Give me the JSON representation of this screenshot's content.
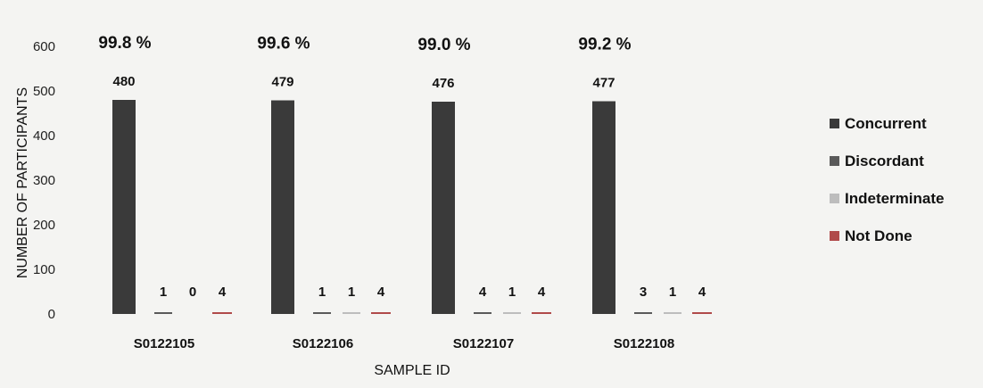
{
  "chart_data": {
    "type": "bar",
    "title": "",
    "xlabel": "SAMPLE ID",
    "ylabel": "NUMBER OF PARTICIPANTS",
    "ylim": [
      0,
      600
    ],
    "yticks": [
      "0",
      "100",
      "200",
      "300",
      "400",
      "500",
      "600"
    ],
    "categories": [
      "S0122105",
      "S0122106",
      "S0122107",
      "S0122108"
    ],
    "series": [
      {
        "name": "Concurrent",
        "values": [
          480,
          479,
          476,
          477
        ],
        "color": "#3a3a3a"
      },
      {
        "name": "Discordant",
        "values": [
          1,
          1,
          4,
          3
        ],
        "color": "#5a5a5a"
      },
      {
        "name": "Indeterminate",
        "values": [
          0,
          1,
          1,
          1
        ],
        "color": "#bdbdbd"
      },
      {
        "name": "Not Done",
        "values": [
          4,
          4,
          4,
          4
        ],
        "color": "#b04a4a"
      }
    ],
    "concordance_labels": [
      "99.8 %",
      "99.6 %",
      "99.0 %",
      "99.2 %"
    ],
    "legend_position": "right",
    "grid": false
  }
}
